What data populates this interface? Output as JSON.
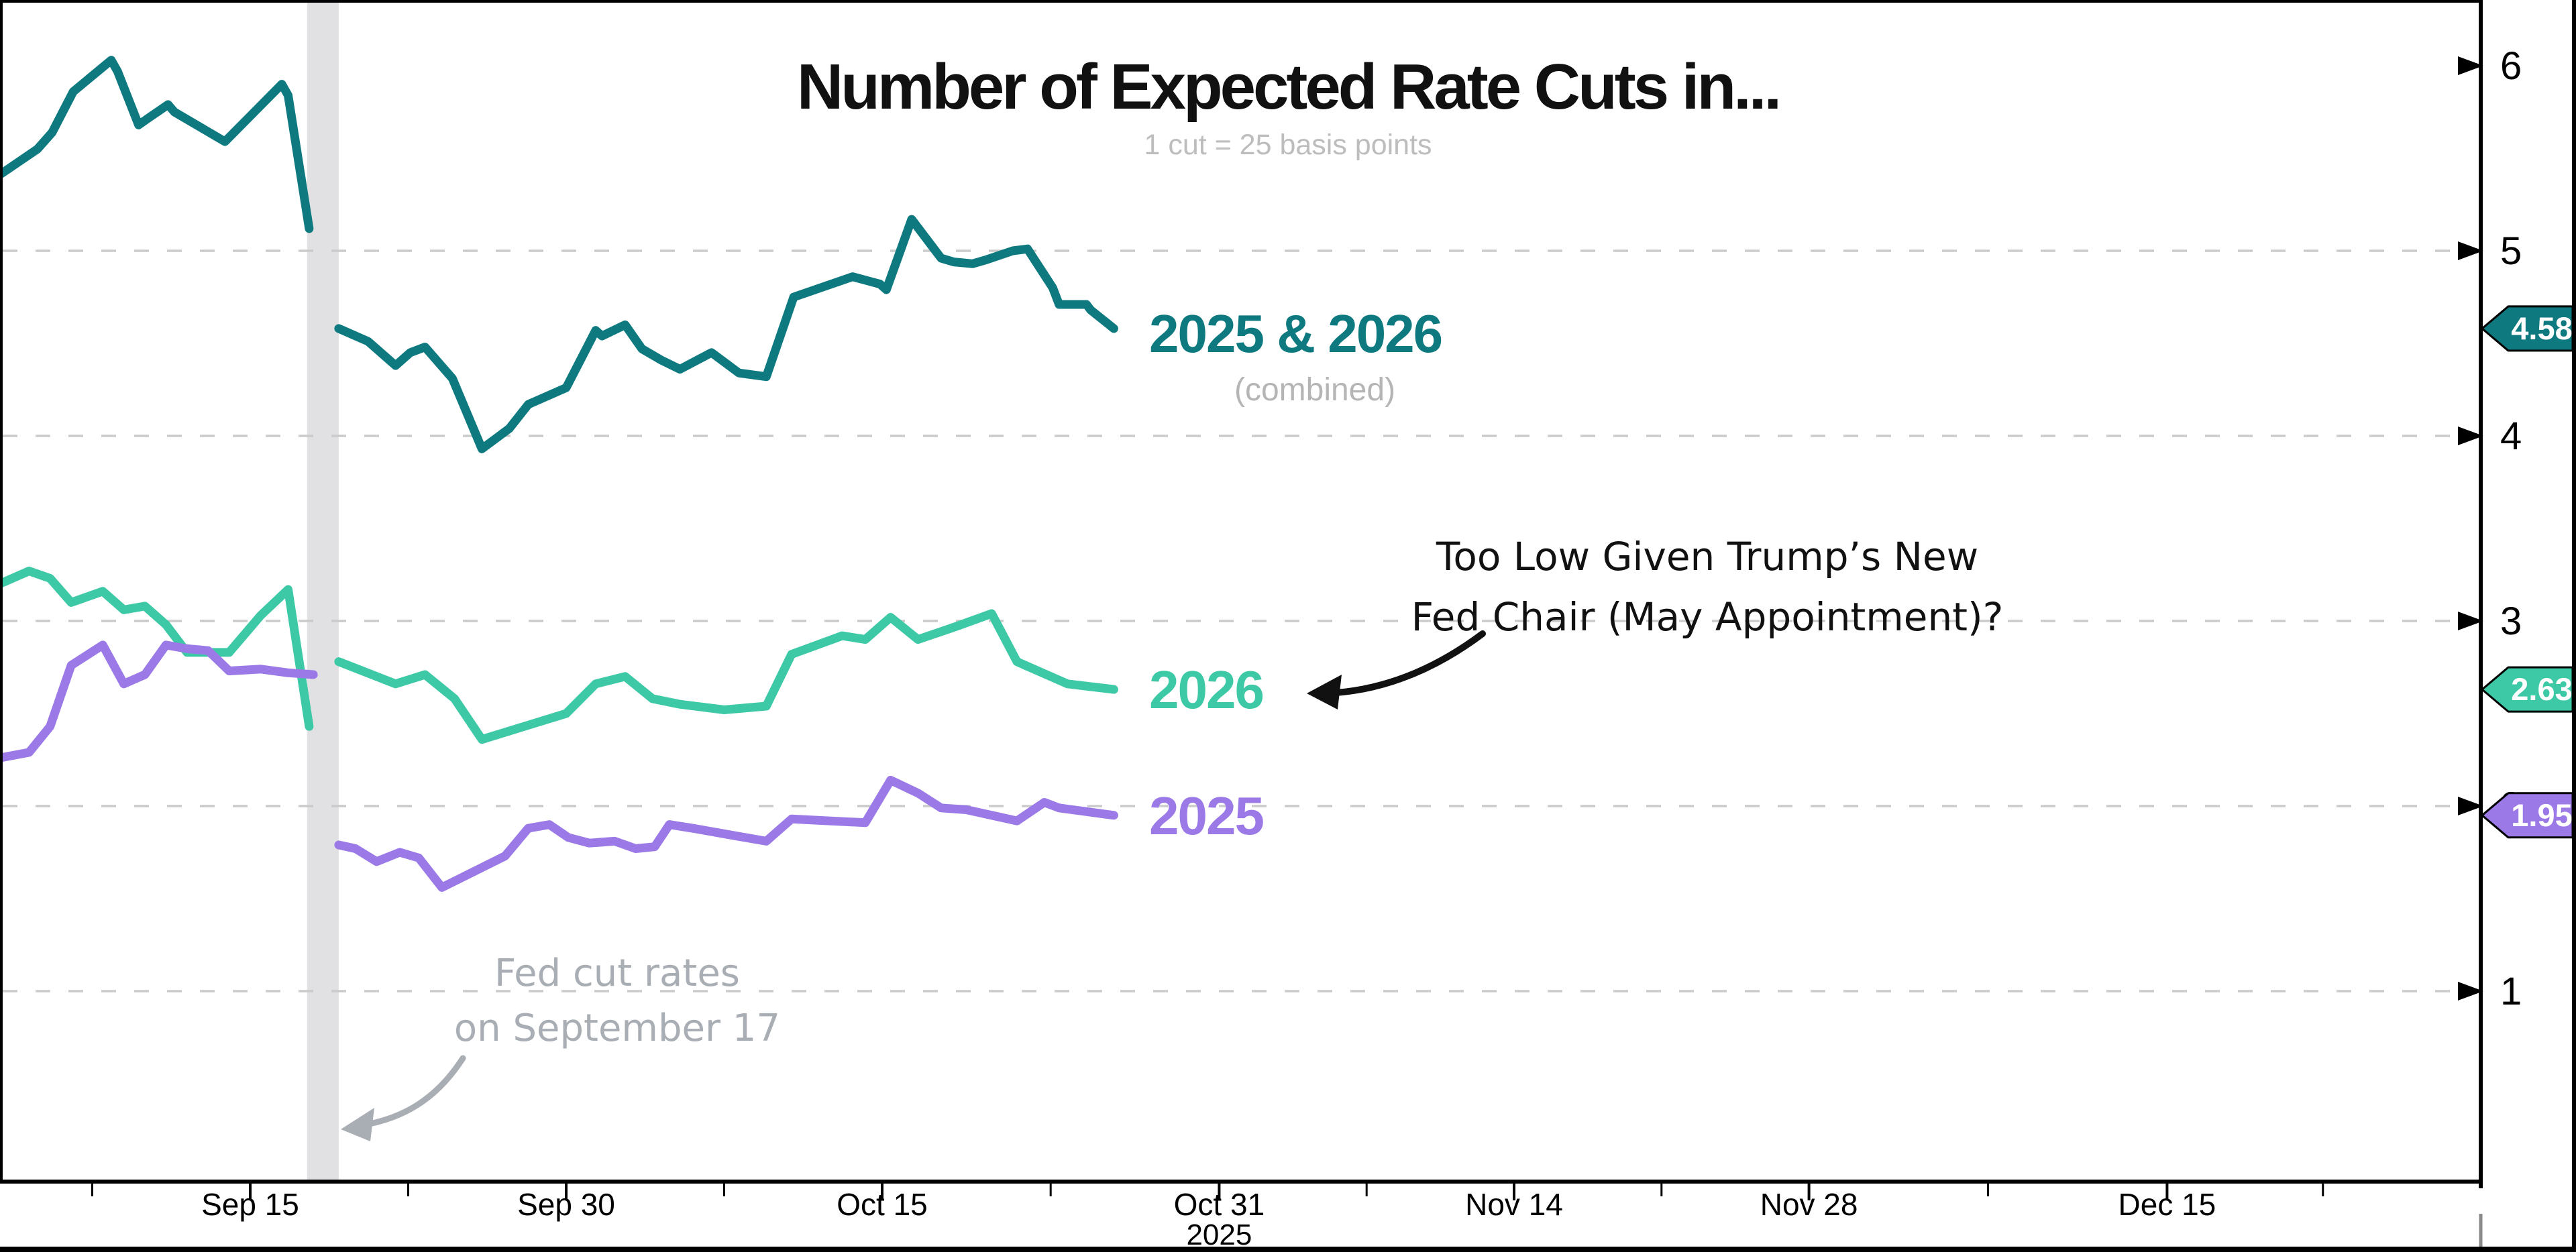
{
  "title": "Number of Expected Rate Cuts in...",
  "subtitle": "1 cut = 25 basis points",
  "colors": {
    "combined": "#0e7a80",
    "y2026": "#3ec9a6",
    "y2025": "#9b7ae8",
    "band": "#e1e1e3",
    "grid": "#cbcbcb",
    "axis": "#000000",
    "muted_gray": "#b5b5b5",
    "annotation_gray": "#a9aeb4",
    "badge_text": "#ffffff"
  },
  "annotations": {
    "fed_chair_note": {
      "line1": "Too Low Given Trump’s New",
      "line2": "Fed Chair (May Appointment)?"
    },
    "rate_cut_note": {
      "line1": "Fed cut rates",
      "line2": "on September 17"
    }
  },
  "chart_data": {
    "type": "line",
    "title": "Number of Expected Rate Cuts in...",
    "subtitle": "1 cut = 25 basis points",
    "x_unit": "days since Sep 15, 2025",
    "x_axis": {
      "ticks": [
        {
          "label": "Sep 15",
          "d": 0
        },
        {
          "label": "Sep 30",
          "d": 15
        },
        {
          "label": "Oct 15",
          "d": 30
        },
        {
          "label": "Oct 31",
          "d": 46,
          "sublabel": "2025"
        },
        {
          "label": "Nov 14",
          "d": 60
        },
        {
          "label": "Nov 28",
          "d": 74
        },
        {
          "label": "Dec 15",
          "d": 91
        }
      ],
      "minor_tick_d": [
        -7.5,
        7.5,
        22.5,
        38,
        53,
        67,
        82.5,
        98.4
      ],
      "domain_d": [
        -11.9,
        105.9
      ]
    },
    "y_axis": {
      "ticks": [
        {
          "v": 1,
          "label": "1"
        },
        {
          "v": 2,
          "label": "2"
        },
        {
          "v": 3,
          "label": "3"
        },
        {
          "v": 4,
          "label": "4"
        },
        {
          "v": 5,
          "label": "5"
        },
        {
          "v": 6,
          "label": "6"
        }
      ],
      "gridline_values": [
        1,
        2,
        3,
        4,
        5
      ],
      "range": [
        0,
        6.35
      ]
    },
    "event_band": {
      "d_start": 2.7,
      "d_end": 4.2,
      "note": "Fed cut rates on September 17"
    },
    "series": [
      {
        "label": "2025 & 2026",
        "sublabel": "(combined)",
        "color_key": "combined",
        "end_value": "4.58",
        "end_v": 4.58,
        "segments": [
          [
            [
              -11.9,
              5.41
            ],
            [
              -10.1,
              5.55
            ],
            [
              -9.4,
              5.64
            ],
            [
              -8.4,
              5.86
            ],
            [
              -6.6,
              6.03
            ],
            [
              -6.3,
              5.97
            ],
            [
              -5.3,
              5.68
            ],
            [
              -4.8,
              5.72
            ],
            [
              -3.9,
              5.79
            ],
            [
              -3.6,
              5.75
            ],
            [
              -1.2,
              5.59
            ],
            [
              1.5,
              5.9
            ],
            [
              1.8,
              5.84
            ],
            [
              2.8,
              5.12
            ]
          ],
          [
            [
              4.2,
              4.58
            ],
            [
              5.6,
              4.51
            ],
            [
              6.9,
              4.38
            ],
            [
              7.6,
              4.45
            ],
            [
              8.3,
              4.48
            ],
            [
              9.6,
              4.31
            ],
            [
              11,
              3.93
            ],
            [
              12.3,
              4.04
            ],
            [
              13.2,
              4.17
            ],
            [
              15,
              4.26
            ],
            [
              16.4,
              4.57
            ],
            [
              16.7,
              4.54
            ],
            [
              17.8,
              4.6
            ],
            [
              18.6,
              4.47
            ],
            [
              19.5,
              4.41
            ],
            [
              20.4,
              4.36
            ],
            [
              21.9,
              4.45
            ],
            [
              23.2,
              4.34
            ],
            [
              24.5,
              4.32
            ],
            [
              25.8,
              4.75
            ],
            [
              28.6,
              4.86
            ],
            [
              29.9,
              4.82
            ],
            [
              30.2,
              4.79
            ],
            [
              31.4,
              5.17
            ],
            [
              32.8,
              4.96
            ],
            [
              33.4,
              4.94
            ],
            [
              34.3,
              4.93
            ],
            [
              34.9,
              4.95
            ],
            [
              36.2,
              5.0
            ],
            [
              36.9,
              5.01
            ],
            [
              38.1,
              4.8
            ],
            [
              38.4,
              4.71
            ],
            [
              39.7,
              4.71
            ],
            [
              39.9,
              4.68
            ],
            [
              41,
              4.58
            ]
          ]
        ]
      },
      {
        "label": "2026",
        "sublabel": "",
        "color_key": "y2026",
        "end_value": "2.63",
        "end_v": 2.63,
        "segments": [
          [
            [
              -11.9,
              3.2
            ],
            [
              -10.5,
              3.27
            ],
            [
              -9.5,
              3.23
            ],
            [
              -8.5,
              3.1
            ],
            [
              -7,
              3.16
            ],
            [
              -6,
              3.06
            ],
            [
              -5,
              3.08
            ],
            [
              -4,
              2.98
            ],
            [
              -3,
              2.83
            ],
            [
              -2,
              2.83
            ],
            [
              -1,
              2.83
            ],
            [
              0.5,
              3.03
            ],
            [
              1.8,
              3.17
            ],
            [
              2.8,
              2.43
            ]
          ],
          [
            [
              4.2,
              2.78
            ],
            [
              6.9,
              2.66
            ],
            [
              8.3,
              2.71
            ],
            [
              9.7,
              2.58
            ],
            [
              11,
              2.36
            ],
            [
              13,
              2.43
            ],
            [
              15,
              2.5
            ],
            [
              16.4,
              2.66
            ],
            [
              17.8,
              2.7
            ],
            [
              19.1,
              2.58
            ],
            [
              20.4,
              2.55
            ],
            [
              22.5,
              2.52
            ],
            [
              24.5,
              2.54
            ],
            [
              25.7,
              2.82
            ],
            [
              28.1,
              2.92
            ],
            [
              29.2,
              2.9
            ],
            [
              30.4,
              3.02
            ],
            [
              31.7,
              2.9
            ],
            [
              33.5,
              2.97
            ],
            [
              35.2,
              3.04
            ],
            [
              36.4,
              2.78
            ],
            [
              38.8,
              2.66
            ],
            [
              41,
              2.63
            ]
          ]
        ]
      },
      {
        "label": "2025",
        "sublabel": "",
        "color_key": "y2025",
        "end_value": "1.95",
        "end_v": 1.95,
        "segments": [
          [
            [
              -11.9,
              2.26
            ],
            [
              -10.5,
              2.29
            ],
            [
              -9.5,
              2.43
            ],
            [
              -8.5,
              2.76
            ],
            [
              -7,
              2.87
            ],
            [
              -6,
              2.66
            ],
            [
              -5,
              2.71
            ],
            [
              -4,
              2.87
            ],
            [
              -3,
              2.85
            ],
            [
              -2,
              2.84
            ],
            [
              -1,
              2.73
            ],
            [
              0.5,
              2.74
            ],
            [
              1.8,
              2.72
            ],
            [
              3,
              2.71
            ]
          ],
          [
            [
              4.2,
              1.79
            ],
            [
              5,
              1.77
            ],
            [
              6,
              1.7
            ],
            [
              7.1,
              1.75
            ],
            [
              8,
              1.72
            ],
            [
              9.1,
              1.56
            ],
            [
              12.1,
              1.73
            ],
            [
              13.2,
              1.88
            ],
            [
              14.2,
              1.9
            ],
            [
              15.1,
              1.83
            ],
            [
              16.1,
              1.8
            ],
            [
              17.3,
              1.81
            ],
            [
              18.3,
              1.77
            ],
            [
              19.2,
              1.78
            ],
            [
              19.9,
              1.9
            ],
            [
              21,
              1.88
            ],
            [
              23,
              1.84
            ],
            [
              24.5,
              1.81
            ],
            [
              25.7,
              1.93
            ],
            [
              29.2,
              1.91
            ],
            [
              30.4,
              2.14
            ],
            [
              31.7,
              2.07
            ],
            [
              32.8,
              1.99
            ],
            [
              34,
              1.98
            ],
            [
              36.4,
              1.92
            ],
            [
              37.7,
              2.02
            ],
            [
              38.4,
              1.99
            ],
            [
              41,
              1.95
            ]
          ]
        ]
      }
    ]
  }
}
